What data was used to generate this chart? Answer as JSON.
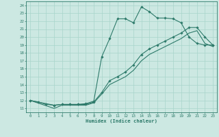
{
  "bg_color": "#cce8e2",
  "line_color": "#2d7a6a",
  "grid_color": "#a8d4ca",
  "xlabel": "Humidex (Indice chaleur)",
  "xlim": [
    -0.5,
    23.5
  ],
  "ylim": [
    10.5,
    24.5
  ],
  "xticks": [
    0,
    1,
    2,
    3,
    4,
    5,
    6,
    7,
    8,
    9,
    10,
    11,
    12,
    13,
    14,
    15,
    16,
    17,
    18,
    19,
    20,
    21,
    22,
    23
  ],
  "yticks": [
    11,
    12,
    13,
    14,
    15,
    16,
    17,
    18,
    19,
    20,
    21,
    22,
    23,
    24
  ],
  "line1_x": [
    0,
    1,
    2,
    3,
    4,
    5,
    6,
    7,
    8,
    9,
    10,
    11,
    12,
    13,
    14,
    15,
    16,
    17,
    18,
    19,
    20,
    21,
    22,
    23
  ],
  "line1_y": [
    12,
    11.8,
    11.5,
    11.4,
    11.5,
    11.5,
    11.5,
    11.6,
    11.9,
    17.5,
    19.8,
    22.3,
    22.3,
    21.8,
    23.8,
    23.2,
    22.4,
    22.4,
    22.3,
    21.8,
    20.0,
    19.2,
    19.0,
    19.0
  ],
  "line2_x": [
    0,
    3,
    4,
    5,
    6,
    7,
    8,
    9,
    10,
    11,
    12,
    13,
    14,
    15,
    16,
    17,
    18,
    19,
    20,
    21,
    22,
    23
  ],
  "line2_y": [
    12,
    11.4,
    11.5,
    11.5,
    11.5,
    11.5,
    11.8,
    13.0,
    14.5,
    15.0,
    15.6,
    16.5,
    17.8,
    18.5,
    19.0,
    19.5,
    20.0,
    20.5,
    21.2,
    21.2,
    20.0,
    19.0
  ],
  "line3_x": [
    0,
    3,
    4,
    5,
    6,
    7,
    8,
    9,
    10,
    11,
    12,
    13,
    14,
    15,
    16,
    17,
    18,
    19,
    20,
    21,
    22,
    23
  ],
  "line3_y": [
    12,
    11.0,
    11.4,
    11.4,
    11.4,
    11.4,
    11.7,
    12.8,
    14.0,
    14.5,
    15.0,
    15.8,
    17.0,
    17.8,
    18.3,
    18.8,
    19.3,
    19.8,
    20.5,
    20.8,
    19.2,
    18.8
  ]
}
